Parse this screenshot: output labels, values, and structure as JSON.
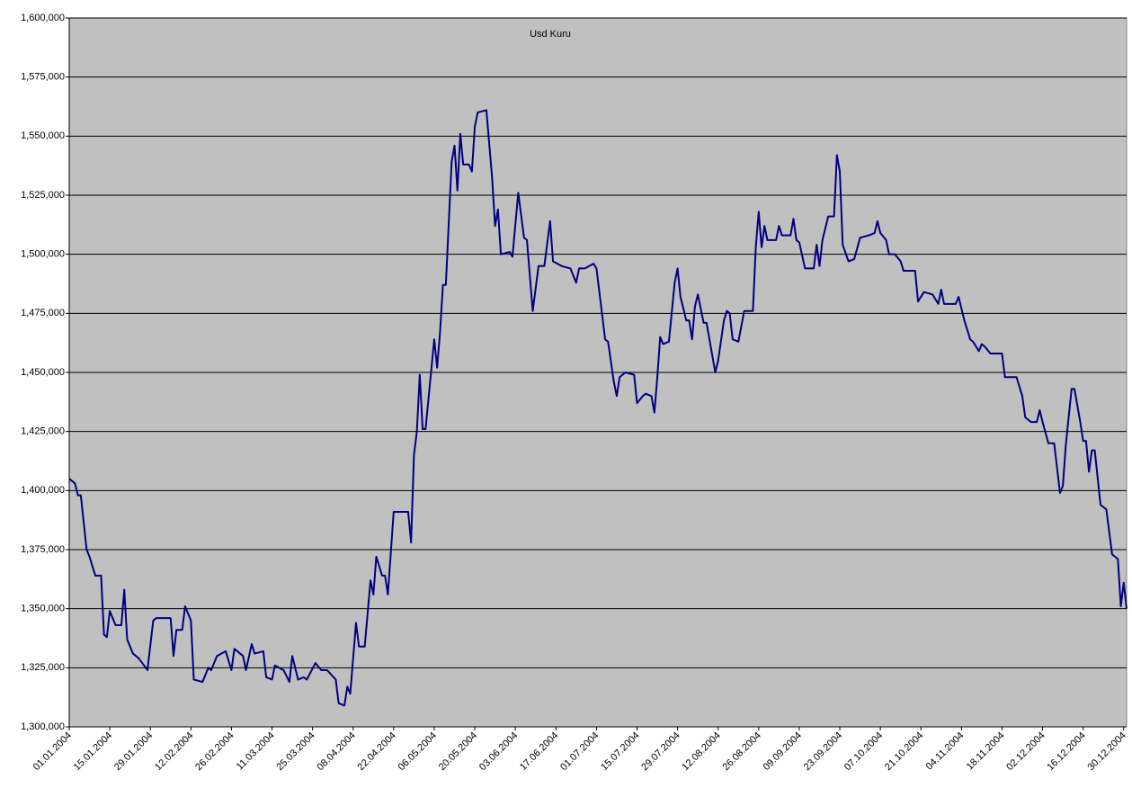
{
  "chart_data": {
    "type": "line",
    "title": "Usd Kuru",
    "color": "#000080",
    "grid": true,
    "x": [
      "01.01.2004",
      "03.01.2004",
      "04.01.2004",
      "05.01.2004",
      "07.01.2004",
      "08.01.2004",
      "09.01.2004",
      "10.01.2004",
      "12.01.2004",
      "13.01.2004",
      "14.01.2004",
      "15.01.2004",
      "17.01.2004",
      "19.01.2004",
      "20.01.2004",
      "21.01.2004",
      "23.01.2004",
      "25.01.2004",
      "28.01.2004",
      "30.01.2004",
      "31.01.2004",
      "05.02.2004",
      "06.02.2004",
      "07.02.2004",
      "09.02.2004",
      "10.02.2004",
      "12.02.2004",
      "13.02.2004",
      "16.02.2004",
      "18.02.2004",
      "19.02.2004",
      "21.02.2004",
      "24.02.2004",
      "26.02.2004",
      "27.02.2004",
      "01.03.2004",
      "02.03.2004",
      "04.03.2004",
      "05.03.2004",
      "08.03.2004",
      "09.03.2004",
      "11.03.2004",
      "12.03.2004",
      "15.03.2004",
      "17.03.2004",
      "18.03.2004",
      "20.03.2004",
      "22.03.2004",
      "23.03.2004",
      "26.03.2004",
      "28.03.2004",
      "30.03.2004",
      "02.04.2004",
      "03.04.2004",
      "05.04.2004",
      "06.04.2004",
      "07.04.2004",
      "09.04.2004",
      "10.04.2004",
      "12.04.2004",
      "14.04.2004",
      "15.04.2004",
      "16.04.2004",
      "18.04.2004",
      "19.04.2004",
      "20.04.2004",
      "22.04.2004",
      "27.04.2004",
      "28.04.2004",
      "29.04.2004",
      "30.04.2004",
      "01.05.2004",
      "02.05.2004",
      "03.05.2004",
      "06.05.2004",
      "07.05.2004",
      "08.05.2004",
      "09.05.2004",
      "10.05.2004",
      "12.05.2004",
      "13.05.2004",
      "14.05.2004",
      "15.05.2004",
      "16.05.2004",
      "18.05.2004",
      "19.05.2004",
      "20.05.2004",
      "21.05.2004",
      "24.05.2004",
      "26.05.2004",
      "27.05.2004",
      "28.05.2004",
      "29.05.2004",
      "01.06.2004",
      "02.06.2004",
      "04.06.2004",
      "06.06.2004",
      "07.06.2004",
      "09.06.2004",
      "11.06.2004",
      "13.06.2004",
      "15.06.2004",
      "16.06.2004",
      "19.06.2004",
      "22.06.2004",
      "24.06.2004",
      "25.06.2004",
      "27.06.2004",
      "30.06.2004",
      "01.07.2004",
      "04.07.2004",
      "05.07.2004",
      "07.07.2004",
      "08.07.2004",
      "09.07.2004",
      "11.07.2004",
      "14.07.2004",
      "15.07.2004",
      "17.07.2004",
      "18.07.2004",
      "20.07.2004",
      "21.07.2004",
      "22.07.2004",
      "23.07.2004",
      "24.07.2004",
      "26.07.2004",
      "28.07.2004",
      "29.07.2004",
      "30.07.2004",
      "01.08.2004",
      "02.08.2004",
      "03.08.2004",
      "04.08.2004",
      "05.08.2004",
      "07.08.2004",
      "08.08.2004",
      "10.08.2004",
      "11.08.2004",
      "12.08.2004",
      "14.08.2004",
      "15.08.2004",
      "16.08.2004",
      "17.08.2004",
      "19.08.2004",
      "21.08.2004",
      "24.08.2004",
      "25.08.2004",
      "26.08.2004",
      "27.08.2004",
      "28.08.2004",
      "29.08.2004",
      "01.09.2004",
      "02.09.2004",
      "03.09.2004",
      "06.09.2004",
      "07.09.2004",
      "08.09.2004",
      "09.09.2004",
      "11.09.2004",
      "14.09.2004",
      "15.09.2004",
      "16.09.2004",
      "17.09.2004",
      "19.09.2004",
      "21.09.2004",
      "22.09.2004",
      "23.09.2004",
      "24.09.2004",
      "26.09.2004",
      "28.09.2004",
      "30.09.2004",
      "03.10.2004",
      "05.10.2004",
      "06.10.2004",
      "07.10.2004",
      "09.10.2004",
      "10.10.2004",
      "12.10.2004",
      "14.10.2004",
      "15.10.2004",
      "19.10.2004",
      "20.10.2004",
      "22.10.2004",
      "25.10.2004",
      "27.10.2004",
      "28.10.2004",
      "29.10.2004",
      "02.11.2004",
      "03.11.2004",
      "05.11.2004",
      "07.11.2004",
      "08.11.2004",
      "10.11.2004",
      "11.11.2004",
      "12.11.2004",
      "14.11.2004",
      "18.11.2004",
      "19.11.2004",
      "23.11.2004",
      "25.11.2004",
      "26.11.2004",
      "28.11.2004",
      "30.11.2004",
      "01.12.2004",
      "02.12.2004",
      "04.12.2004",
      "06.12.2004",
      "08.12.2004",
      "09.12.2004",
      "10.12.2004",
      "12.12.2004",
      "13.12.2004",
      "15.12.2004",
      "16.12.2004",
      "17.12.2004",
      "18.12.2004",
      "19.12.2004",
      "20.12.2004",
      "22.12.2004",
      "24.12.2004",
      "26.12.2004",
      "28.12.2004",
      "29.12.2004",
      "30.12.2004",
      "31.12.2004"
    ],
    "values": [
      1405000,
      1403000,
      1398000,
      1398000,
      1375000,
      1372000,
      1368000,
      1364000,
      1364000,
      1339000,
      1338000,
      1349000,
      1343000,
      1343000,
      1358000,
      1337000,
      1331000,
      1329000,
      1324000,
      1345000,
      1346000,
      1346000,
      1330000,
      1341000,
      1341000,
      1351000,
      1345000,
      1320000,
      1319000,
      1325000,
      1324000,
      1330000,
      1332000,
      1324000,
      1333000,
      1330000,
      1324000,
      1335000,
      1331000,
      1332000,
      1321000,
      1320000,
      1326000,
      1324000,
      1319000,
      1330000,
      1320000,
      1321000,
      1320000,
      1327000,
      1324000,
      1324000,
      1320000,
      1310000,
      1309000,
      1317000,
      1314000,
      1344000,
      1334000,
      1334000,
      1362000,
      1356000,
      1372000,
      1364000,
      1364000,
      1356000,
      1391000,
      1391000,
      1378000,
      1415000,
      1425000,
      1449000,
      1426000,
      1426000,
      1464000,
      1452000,
      1467000,
      1487000,
      1487000,
      1539000,
      1546000,
      1527000,
      1551000,
      1538000,
      1538000,
      1535000,
      1554000,
      1560000,
      1561000,
      1532000,
      1512000,
      1519000,
      1500000,
      1501000,
      1499000,
      1526000,
      1507000,
      1506000,
      1476000,
      1495000,
      1495000,
      1514000,
      1497000,
      1495000,
      1494000,
      1488000,
      1494000,
      1494000,
      1496000,
      1494000,
      1464000,
      1463000,
      1446000,
      1440000,
      1448000,
      1450000,
      1449000,
      1437000,
      1440000,
      1441000,
      1440000,
      1433000,
      1448000,
      1465000,
      1462000,
      1463000,
      1488000,
      1494000,
      1482000,
      1472000,
      1472000,
      1464000,
      1478000,
      1483000,
      1471000,
      1471000,
      1457000,
      1450000,
      1455000,
      1472000,
      1476000,
      1475000,
      1464000,
      1463000,
      1476000,
      1476000,
      1503000,
      1518000,
      1503000,
      1512000,
      1506000,
      1506000,
      1512000,
      1508000,
      1508000,
      1515000,
      1506000,
      1505000,
      1494000,
      1494000,
      1504000,
      1495000,
      1506000,
      1516000,
      1516000,
      1542000,
      1535000,
      1504000,
      1497000,
      1498000,
      1507000,
      1508000,
      1509000,
      1514000,
      1509000,
      1506000,
      1500000,
      1500000,
      1497000,
      1493000,
      1493000,
      1480000,
      1484000,
      1483000,
      1479000,
      1485000,
      1479000,
      1479000,
      1482000,
      1472000,
      1464000,
      1463000,
      1459000,
      1462000,
      1461000,
      1458000,
      1458000,
      1448000,
      1448000,
      1440000,
      1431000,
      1429000,
      1429000,
      1434000,
      1429000,
      1420000,
      1420000,
      1399000,
      1402000,
      1419000,
      1443000,
      1443000,
      1429000,
      1421000,
      1421000,
      1408000,
      1417000,
      1417000,
      1394000,
      1392000,
      1373000,
      1371000,
      1351000,
      1361000,
      1350000
    ],
    "xlim": [
      "01.01.2004",
      "31.12.2004"
    ],
    "xticks": [
      "01.01.2004",
      "15.01.2004",
      "29.01.2004",
      "12.02.2004",
      "26.02.2004",
      "11.03.2004",
      "25.03.2004",
      "08.04.2004",
      "22.04.2004",
      "06.05.2004",
      "20.05.2004",
      "03.06.2004",
      "17.06.2004",
      "01.07.2004",
      "15.07.2004",
      "29.07.2004",
      "12.08.2004",
      "26.08.2004",
      "09.09.2004",
      "23.09.2004",
      "07.10.2004",
      "21.10.2004",
      "04.11.2004",
      "18.11.2004",
      "02.12.2004",
      "16.12.2004",
      "30.12.2004"
    ],
    "ylim": [
      1300000,
      1600000
    ],
    "yticks": [
      {
        "value": 1300000,
        "label": "1,300,000"
      },
      {
        "value": 1325000,
        "label": "1,325,000"
      },
      {
        "value": 1350000,
        "label": "1,350,000"
      },
      {
        "value": 1375000,
        "label": "1,375,000"
      },
      {
        "value": 1400000,
        "label": "1,400,000"
      },
      {
        "value": 1425000,
        "label": "1,425,000"
      },
      {
        "value": 1450000,
        "label": "1,450,000"
      },
      {
        "value": 1475000,
        "label": "1,475,000"
      },
      {
        "value": 1500000,
        "label": "1,500,000"
      },
      {
        "value": 1525000,
        "label": "1,525,000"
      },
      {
        "value": 1550000,
        "label": "1,550,000"
      },
      {
        "value": 1575000,
        "label": "1,575,000"
      },
      {
        "value": 1600000,
        "label": "1,600,000"
      }
    ]
  }
}
